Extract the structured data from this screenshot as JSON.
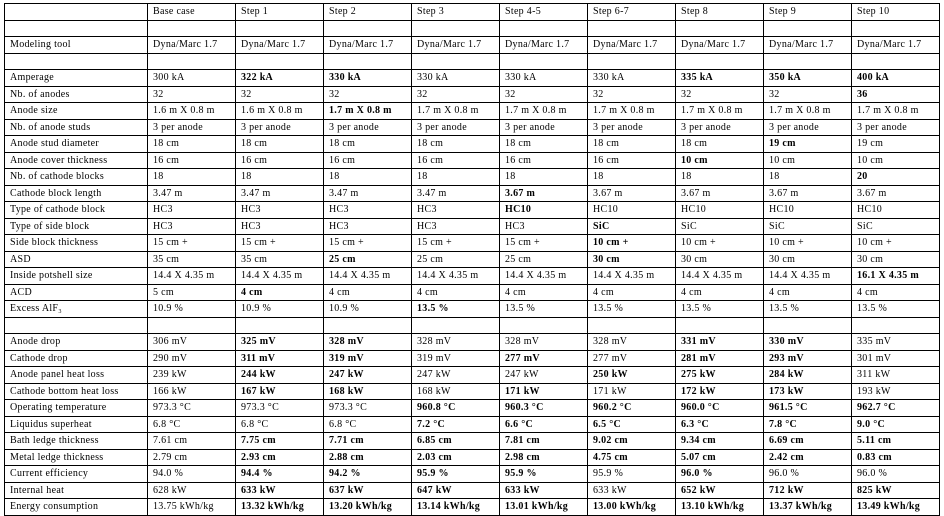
{
  "header": [
    "",
    "Base case",
    "Step 1",
    "Step 2",
    "Step 3",
    "Step 4-5",
    "Step 6-7",
    "Step 8",
    "Step 9",
    "Step 10"
  ],
  "rows": [
    {
      "label": "",
      "values": [
        "",
        "",
        "",
        "",
        "",
        "",
        "",
        "",
        ""
      ],
      "bold": []
    },
    {
      "label": "Modeling tool",
      "values": [
        "Dyna/Marc 1.7",
        "Dyna/Marc 1.7",
        "Dyna/Marc 1.7",
        "Dyna/Marc 1.7",
        "Dyna/Marc 1.7",
        "Dyna/Marc 1.7",
        "Dyna/Marc 1.7",
        "Dyna/Marc 1.7",
        "Dyna/Marc 1.7"
      ],
      "bold": []
    },
    {
      "label": "",
      "values": [
        "",
        "",
        "",
        "",
        "",
        "",
        "",
        "",
        ""
      ],
      "bold": []
    },
    {
      "label": "Amperage",
      "values": [
        "300 kA",
        "322 kA",
        "330 kA",
        "330 kA",
        "330 kA",
        "330 kA",
        "335 kA",
        "350 kA",
        "400 kA"
      ],
      "bold": [
        1,
        2,
        6,
        7,
        8
      ]
    },
    {
      "label": "Nb. of anodes",
      "values": [
        "32",
        "32",
        "32",
        "32",
        "32",
        "32",
        "32",
        "32",
        "36"
      ],
      "bold": [
        8
      ]
    },
    {
      "label": "Anode size",
      "values": [
        "1.6 m X 0.8 m",
        "1.6 m X 0.8 m",
        "1.7 m X 0.8 m",
        "1.7 m X 0.8 m",
        "1.7 m X 0.8 m",
        "1.7 m X 0.8 m",
        "1.7 m X 0.8 m",
        "1.7 m X 0.8 m",
        "1.7 m X 0.8 m"
      ],
      "bold": [
        2
      ]
    },
    {
      "label": "Nb. of anode studs",
      "values": [
        "3 per anode",
        "3 per anode",
        "3 per anode",
        "3 per anode",
        "3 per anode",
        "3 per anode",
        "3 per anode",
        "3 per anode",
        "3 per anode"
      ],
      "bold": []
    },
    {
      "label": "Anode stud diameter",
      "values": [
        "18 cm",
        "18 cm",
        "18 cm",
        "18 cm",
        "18 cm",
        "18 cm",
        "18 cm",
        "19 cm",
        "19 cm"
      ],
      "bold": [
        7
      ]
    },
    {
      "label": "Anode cover thickness",
      "values": [
        "16 cm",
        "16 cm",
        "16 cm",
        "16 cm",
        "16 cm",
        "16 cm",
        "10 cm",
        "10 cm",
        "10 cm"
      ],
      "bold": [
        6
      ]
    },
    {
      "label": "Nb. of cathode blocks",
      "values": [
        "18",
        "18",
        "18",
        "18",
        "18",
        "18",
        "18",
        "18",
        "20"
      ],
      "bold": [
        8
      ]
    },
    {
      "label": "Cathode block length",
      "values": [
        "3.47 m",
        "3.47 m",
        "3.47 m",
        "3.47 m",
        "3.67 m",
        "3.67 m",
        "3.67 m",
        "3.67 m",
        "3.67 m"
      ],
      "bold": [
        4
      ]
    },
    {
      "label": "Type of cathode block",
      "values": [
        "HC3",
        "HC3",
        "HC3",
        "HC3",
        "HC10",
        "HC10",
        "HC10",
        "HC10",
        "HC10"
      ],
      "bold": [
        4
      ]
    },
    {
      "label": "Type of side block",
      "values": [
        "HC3",
        "HC3",
        "HC3",
        "HC3",
        "HC3",
        "SiC",
        "SiC",
        "SiC",
        "SiC"
      ],
      "bold": [
        5
      ]
    },
    {
      "label": "Side block thickness",
      "values": [
        "15 cm +",
        "15 cm +",
        "15 cm +",
        "15 cm +",
        "15 cm +",
        "10 cm +",
        "10 cm +",
        "10 cm +",
        "10 cm +"
      ],
      "bold": [
        5
      ]
    },
    {
      "label": "ASD",
      "values": [
        "35 cm",
        "35 cm",
        "25 cm",
        "25 cm",
        "25 cm",
        "30 cm",
        "30 cm",
        "30 cm",
        "30 cm"
      ],
      "bold": [
        2,
        5
      ]
    },
    {
      "label": "Inside potshell size",
      "values": [
        "14.4 X 4.35 m",
        "14.4 X 4.35 m",
        "14.4 X 4.35 m",
        "14.4 X 4.35 m",
        "14.4 X 4.35 m",
        "14.4 X 4.35 m",
        "14.4 X 4.35 m",
        "14.4 X 4.35 m",
        "16.1 X 4.35 m"
      ],
      "bold": [
        8
      ]
    },
    {
      "label": "ACD",
      "values": [
        "5 cm",
        "4 cm",
        "4 cm",
        "4 cm",
        "4 cm",
        "4 cm",
        "4 cm",
        "4 cm",
        "4 cm"
      ],
      "bold": [
        1
      ]
    },
    {
      "label": "Excess AlF₃",
      "values": [
        "10.9 %",
        "10.9 %",
        "10.9 %",
        "13.5 %",
        "13.5 %",
        "13.5 %",
        "13.5 %",
        "13.5 %",
        "13.5 %"
      ],
      "bold": [
        3
      ]
    },
    {
      "label": "",
      "values": [
        "",
        "",
        "",
        "",
        "",
        "",
        "",
        "",
        ""
      ],
      "bold": []
    },
    {
      "label": "Anode drop",
      "values": [
        "306 mV",
        "325 mV",
        "328 mV",
        "328 mV",
        "328 mV",
        "328 mV",
        "331 mV",
        "330 mV",
        "335 mV"
      ],
      "bold": [
        1,
        2,
        6,
        7
      ]
    },
    {
      "label": "Cathode drop",
      "values": [
        "290 mV",
        "311 mV",
        "319 mV",
        "319 mV",
        "277 mV",
        "277 mV",
        "281 mV",
        "293 mV",
        "301 mV"
      ],
      "bold": [
        1,
        2,
        4,
        6,
        7
      ]
    },
    {
      "label": "Anode panel heat loss",
      "values": [
        "239 kW",
        "244 kW",
        "247 kW",
        "247 kW",
        "247 kW",
        "250 kW",
        "275 kW",
        "284 kW",
        "311 kW"
      ],
      "bold": [
        1,
        2,
        5,
        6,
        7
      ]
    },
    {
      "label": "Cathode bottom heat loss",
      "values": [
        "166 kW",
        "167 kW",
        "168 kW",
        "168 kW",
        "171 kW",
        "171 kW",
        "172 kW",
        "173 kW",
        "193 kW"
      ],
      "bold": [
        1,
        2,
        4,
        6,
        7
      ]
    },
    {
      "label": "Operating temperature",
      "values": [
        "973.3 °C",
        "973.3 °C",
        "973.3 °C",
        "960.8 °C",
        "960.3 °C",
        "960.2 °C",
        "960.0 °C",
        "961.5 °C",
        "962.7 °C"
      ],
      "bold": [
        3,
        4,
        5,
        6,
        7,
        8
      ]
    },
    {
      "label": "Liquidus superheat",
      "values": [
        "6.8 °C",
        "6.8 °C",
        "6.8 °C",
        "7.2 °C",
        "6.6 °C",
        "6.5 °C",
        "6.3 °C",
        "7.8 °C",
        "9.0 °C"
      ],
      "bold": [
        3,
        4,
        5,
        6,
        7,
        8
      ]
    },
    {
      "label": "Bath ledge thickness",
      "values": [
        "7.61 cm",
        "7.75 cm",
        "7.71 cm",
        "6.85 cm",
        "7.81 cm",
        "9.02 cm",
        "9.34 cm",
        "6.69 cm",
        "5.11 cm"
      ],
      "bold": [
        1,
        2,
        3,
        4,
        5,
        6,
        7,
        8
      ]
    },
    {
      "label": "Metal ledge thickness",
      "values": [
        "2.79 cm",
        "2.93 cm",
        "2.88 cm",
        "2.03 cm",
        "2.98 cm",
        "4.75 cm",
        "5.07 cm",
        "2.42 cm",
        "0.83 cm"
      ],
      "bold": [
        1,
        2,
        3,
        4,
        5,
        6,
        7,
        8
      ]
    },
    {
      "label": "Current efficiency",
      "values": [
        "94.0 %",
        "94.4 %",
        "94.2 %",
        "95.9 %",
        "95.9 %",
        "95.9 %",
        "96.0 %",
        "96.0 %",
        "96.0 %"
      ],
      "bold": [
        1,
        2,
        3,
        4,
        6
      ]
    },
    {
      "label": "Internal heat",
      "values": [
        "628 kW",
        "633 kW",
        "637 kW",
        "647 kW",
        "633 kW",
        "633 kW",
        "652 kW",
        "712 kW",
        "825 kW"
      ],
      "bold": [
        1,
        2,
        3,
        4,
        6,
        7,
        8
      ]
    },
    {
      "label": "Energy consumption",
      "values": [
        "13.75 kWh/kg",
        "13.32 kWh/kg",
        "13.20 kWh/kg",
        "13.14 kWh/kg",
        "13.01 kWh/kg",
        "13.00 kWh/kg",
        "13.10 kWh/kg",
        "13.37 kWh/kg",
        "13.49 kWh/kg"
      ],
      "bold": [
        1,
        2,
        3,
        4,
        5,
        6,
        7,
        8
      ]
    }
  ]
}
